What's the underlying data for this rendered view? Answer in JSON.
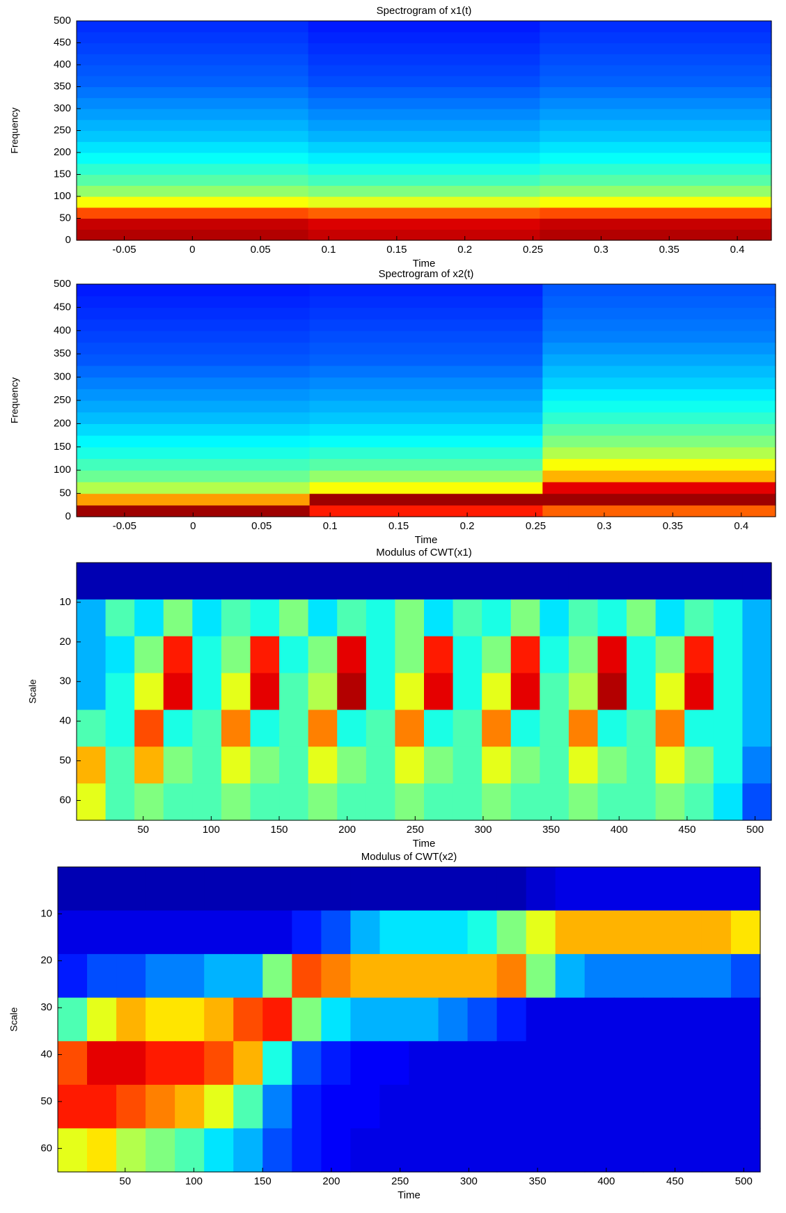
{
  "chart_data": [
    {
      "type": "heatmap",
      "title": "Spectrogram of x1(t)",
      "xlabel": "Time",
      "ylabel": "Frequency",
      "colormap": "jet",
      "xlim": [
        -0.085,
        0.425
      ],
      "ylim": [
        0,
        500
      ],
      "yreverse": false,
      "xticks": [
        -0.05,
        0,
        0.05,
        0.1,
        0.15,
        0.2,
        0.25,
        0.3,
        0.35,
        0.4
      ],
      "yticks": [
        0,
        50,
        100,
        150,
        200,
        250,
        300,
        350,
        400,
        450,
        500
      ],
      "z": [
        [
          0.95,
          0.93,
          0.95
        ],
        [
          0.93,
          0.91,
          0.93
        ],
        [
          0.8,
          0.78,
          0.8
        ],
        [
          0.62,
          0.6,
          0.62
        ],
        [
          0.52,
          0.5,
          0.52
        ],
        [
          0.46,
          0.44,
          0.46
        ],
        [
          0.42,
          0.4,
          0.42
        ],
        [
          0.38,
          0.36,
          0.38
        ],
        [
          0.35,
          0.33,
          0.35
        ],
        [
          0.32,
          0.3,
          0.32
        ],
        [
          0.3,
          0.28,
          0.3
        ],
        [
          0.28,
          0.26,
          0.28
        ],
        [
          0.26,
          0.24,
          0.26
        ],
        [
          0.24,
          0.22,
          0.24
        ],
        [
          0.22,
          0.2,
          0.22
        ],
        [
          0.21,
          0.19,
          0.21
        ],
        [
          0.2,
          0.18,
          0.2
        ],
        [
          0.19,
          0.17,
          0.19
        ],
        [
          0.18,
          0.16,
          0.18
        ],
        [
          0.17,
          0.15,
          0.17
        ]
      ]
    },
    {
      "type": "heatmap",
      "title": "Spectrogram of x2(t)",
      "xlabel": "Time",
      "ylabel": "Frequency",
      "colormap": "jet",
      "xlim": [
        -0.085,
        0.425
      ],
      "ylim": [
        0,
        500
      ],
      "yreverse": false,
      "xticks": [
        -0.05,
        0,
        0.05,
        0.1,
        0.15,
        0.2,
        0.25,
        0.3,
        0.35,
        0.4
      ],
      "yticks": [
        0,
        50,
        100,
        150,
        200,
        250,
        300,
        350,
        400,
        450,
        500
      ],
      "z": [
        [
          0.97,
          0.85,
          0.78
        ],
        [
          0.72,
          0.97,
          0.97
        ],
        [
          0.55,
          0.62,
          0.9
        ],
        [
          0.48,
          0.52,
          0.7
        ],
        [
          0.44,
          0.46,
          0.62
        ],
        [
          0.4,
          0.42,
          0.55
        ],
        [
          0.37,
          0.38,
          0.5
        ],
        [
          0.34,
          0.35,
          0.46
        ],
        [
          0.31,
          0.32,
          0.42
        ],
        [
          0.29,
          0.3,
          0.39
        ],
        [
          0.27,
          0.28,
          0.36
        ],
        [
          0.25,
          0.26,
          0.33
        ],
        [
          0.23,
          0.24,
          0.31
        ],
        [
          0.21,
          0.22,
          0.29
        ],
        [
          0.2,
          0.21,
          0.27
        ],
        [
          0.19,
          0.2,
          0.25
        ],
        [
          0.18,
          0.19,
          0.24
        ],
        [
          0.17,
          0.18,
          0.23
        ],
        [
          0.16,
          0.17,
          0.22
        ],
        [
          0.15,
          0.16,
          0.21
        ]
      ]
    },
    {
      "type": "heatmap",
      "title": "Modulus of CWT(x1)",
      "xlabel": "Time",
      "ylabel": "Scale",
      "colormap": "jet",
      "xlim": [
        1,
        512
      ],
      "ylim": [
        0,
        65
      ],
      "yreverse": true,
      "xticks": [
        50,
        100,
        150,
        200,
        250,
        300,
        350,
        400,
        450,
        500
      ],
      "yticks": [
        10,
        20,
        30,
        40,
        50,
        60
      ],
      "z": [
        [
          0.05,
          0.05,
          0.05,
          0.05,
          0.05,
          0.05,
          0.05,
          0.05,
          0.05,
          0.05,
          0.05,
          0.05,
          0.05,
          0.05,
          0.05,
          0.05,
          0.05,
          0.05,
          0.05,
          0.05,
          0.05,
          0.05,
          0.05,
          0.05
        ],
        [
          0.3,
          0.45,
          0.35,
          0.5,
          0.35,
          0.45,
          0.4,
          0.5,
          0.35,
          0.45,
          0.4,
          0.5,
          0.35,
          0.45,
          0.4,
          0.5,
          0.35,
          0.45,
          0.4,
          0.5,
          0.35,
          0.45,
          0.4,
          0.3
        ],
        [
          0.3,
          0.35,
          0.5,
          0.85,
          0.4,
          0.5,
          0.85,
          0.4,
          0.5,
          0.9,
          0.4,
          0.5,
          0.85,
          0.4,
          0.5,
          0.85,
          0.4,
          0.5,
          0.9,
          0.4,
          0.5,
          0.85,
          0.4,
          0.3
        ],
        [
          0.3,
          0.4,
          0.6,
          0.9,
          0.4,
          0.6,
          0.9,
          0.45,
          0.55,
          0.95,
          0.4,
          0.6,
          0.9,
          0.4,
          0.6,
          0.9,
          0.45,
          0.55,
          0.95,
          0.4,
          0.6,
          0.9,
          0.4,
          0.3
        ],
        [
          0.45,
          0.4,
          0.8,
          0.4,
          0.45,
          0.75,
          0.4,
          0.45,
          0.75,
          0.4,
          0.45,
          0.75,
          0.4,
          0.45,
          0.75,
          0.4,
          0.45,
          0.75,
          0.4,
          0.45,
          0.75,
          0.4,
          0.4,
          0.3
        ],
        [
          0.7,
          0.45,
          0.7,
          0.5,
          0.45,
          0.6,
          0.5,
          0.45,
          0.6,
          0.5,
          0.45,
          0.6,
          0.5,
          0.45,
          0.6,
          0.5,
          0.45,
          0.6,
          0.5,
          0.45,
          0.6,
          0.5,
          0.4,
          0.25
        ],
        [
          0.6,
          0.45,
          0.5,
          0.45,
          0.45,
          0.5,
          0.45,
          0.45,
          0.5,
          0.45,
          0.45,
          0.5,
          0.45,
          0.45,
          0.5,
          0.45,
          0.45,
          0.5,
          0.45,
          0.45,
          0.5,
          0.45,
          0.35,
          0.2
        ]
      ]
    },
    {
      "type": "heatmap",
      "title": "Modulus of CWT(x2)",
      "xlabel": "Time",
      "ylabel": "Scale",
      "colormap": "jet",
      "xlim": [
        1,
        512
      ],
      "ylim": [
        0,
        65
      ],
      "yreverse": true,
      "xticks": [
        50,
        100,
        150,
        200,
        250,
        300,
        350,
        400,
        450,
        500
      ],
      "yticks": [
        10,
        20,
        30,
        40,
        50,
        60
      ],
      "z": [
        [
          0.05,
          0.05,
          0.05,
          0.05,
          0.05,
          0.05,
          0.05,
          0.05,
          0.05,
          0.05,
          0.05,
          0.05,
          0.05,
          0.05,
          0.05,
          0.05,
          0.08,
          0.1,
          0.1,
          0.1,
          0.1,
          0.1,
          0.1,
          0.1
        ],
        [
          0.1,
          0.1,
          0.1,
          0.1,
          0.1,
          0.1,
          0.1,
          0.1,
          0.15,
          0.2,
          0.3,
          0.35,
          0.35,
          0.35,
          0.4,
          0.5,
          0.6,
          0.7,
          0.7,
          0.7,
          0.7,
          0.7,
          0.7,
          0.65
        ],
        [
          0.15,
          0.2,
          0.2,
          0.25,
          0.25,
          0.3,
          0.3,
          0.5,
          0.8,
          0.75,
          0.7,
          0.7,
          0.7,
          0.7,
          0.7,
          0.75,
          0.5,
          0.3,
          0.25,
          0.25,
          0.25,
          0.25,
          0.25,
          0.2
        ],
        [
          0.45,
          0.6,
          0.7,
          0.65,
          0.65,
          0.7,
          0.8,
          0.85,
          0.5,
          0.35,
          0.3,
          0.3,
          0.3,
          0.25,
          0.2,
          0.15,
          0.1,
          0.1,
          0.1,
          0.1,
          0.1,
          0.1,
          0.1,
          0.1
        ],
        [
          0.8,
          0.9,
          0.9,
          0.85,
          0.85,
          0.8,
          0.7,
          0.4,
          0.2,
          0.15,
          0.12,
          0.12,
          0.1,
          0.1,
          0.1,
          0.1,
          0.1,
          0.1,
          0.1,
          0.1,
          0.1,
          0.1,
          0.1,
          0.1
        ],
        [
          0.85,
          0.85,
          0.8,
          0.75,
          0.7,
          0.6,
          0.45,
          0.25,
          0.15,
          0.12,
          0.12,
          0.1,
          0.1,
          0.1,
          0.1,
          0.1,
          0.1,
          0.1,
          0.1,
          0.1,
          0.1,
          0.1,
          0.1,
          0.1
        ],
        [
          0.6,
          0.65,
          0.55,
          0.5,
          0.45,
          0.35,
          0.3,
          0.2,
          0.15,
          0.12,
          0.1,
          0.1,
          0.1,
          0.1,
          0.1,
          0.1,
          0.1,
          0.1,
          0.1,
          0.1,
          0.1,
          0.1,
          0.1,
          0.1
        ]
      ]
    }
  ]
}
